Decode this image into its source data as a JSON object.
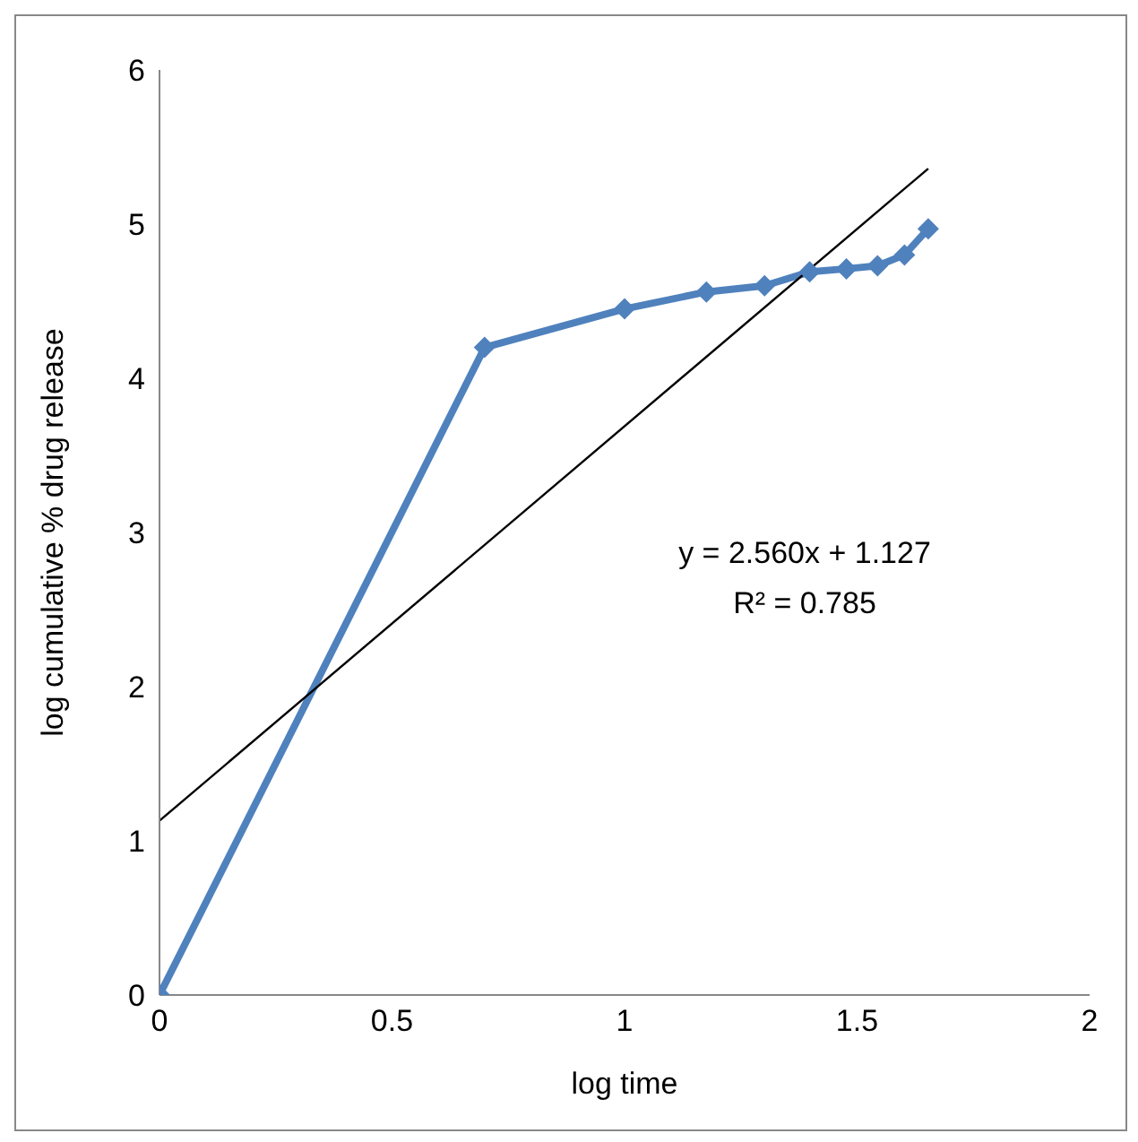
{
  "chart_data": {
    "type": "line",
    "xlabel": "log time",
    "ylabel": "log cumulative %  drug release",
    "xlim": [
      0,
      2
    ],
    "xticks": [
      0,
      0.5,
      1,
      1.5,
      2
    ],
    "ylim": [
      0,
      6
    ],
    "yticks": [
      0,
      1,
      2,
      3,
      4,
      5,
      6
    ],
    "series": [
      {
        "color": "#4f81bd",
        "marker": "diamond",
        "x": [
          0,
          0.699,
          1.0,
          1.176,
          1.301,
          1.398,
          1.477,
          1.544,
          1.602,
          1.653
        ],
        "values": [
          0,
          4.2,
          4.45,
          4.56,
          4.6,
          4.69,
          4.71,
          4.73,
          4.8,
          4.97
        ]
      },
      {
        "type": "line",
        "color": "#000000",
        "marker": "none",
        "x": [
          0,
          1.653
        ],
        "values": [
          1.13,
          5.36
        ]
      }
    ],
    "annotations": [
      "y = 2.560x + 1.127",
      "R² = 0.785"
    ]
  }
}
